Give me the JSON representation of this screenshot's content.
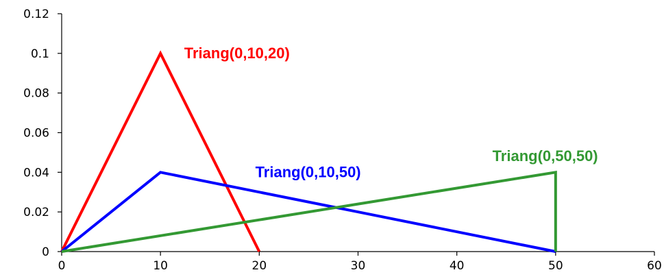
{
  "chart_data": {
    "type": "line",
    "title": "",
    "xlabel": "",
    "ylabel": "",
    "xlim": [
      0,
      60
    ],
    "ylim": [
      0,
      0.12
    ],
    "x_ticks": [
      0,
      10,
      20,
      30,
      40,
      50,
      60
    ],
    "y_ticks": [
      0,
      0.02,
      0.04,
      0.06,
      0.08,
      0.1,
      0.12
    ],
    "x_tick_labels": [
      "0",
      "10",
      "20",
      "30",
      "40",
      "50",
      "60"
    ],
    "y_tick_labels": [
      "0",
      "0.02",
      "0.04",
      "0.06",
      "0.08",
      "0.1",
      "0.12"
    ],
    "grid": false,
    "legend": "none",
    "series": [
      {
        "name": "Triang(0,10,20)",
        "color": "#ff0000",
        "points": [
          [
            0,
            0
          ],
          [
            10,
            0.1
          ],
          [
            20,
            0
          ]
        ],
        "label_anchor": [
          12.4,
          0.1
        ]
      },
      {
        "name": "Triang(0,10,50)",
        "color": "#0000ff",
        "points": [
          [
            0,
            0
          ],
          [
            10,
            0.04
          ],
          [
            50,
            0
          ]
        ],
        "label_anchor": [
          19.6,
          0.04
        ]
      },
      {
        "name": "Triang(0,50,50)",
        "color": "#339933",
        "points": [
          [
            0,
            0
          ],
          [
            50,
            0.04
          ],
          [
            50,
            0
          ]
        ],
        "label_anchor": [
          43.6,
          0.048
        ]
      }
    ]
  }
}
